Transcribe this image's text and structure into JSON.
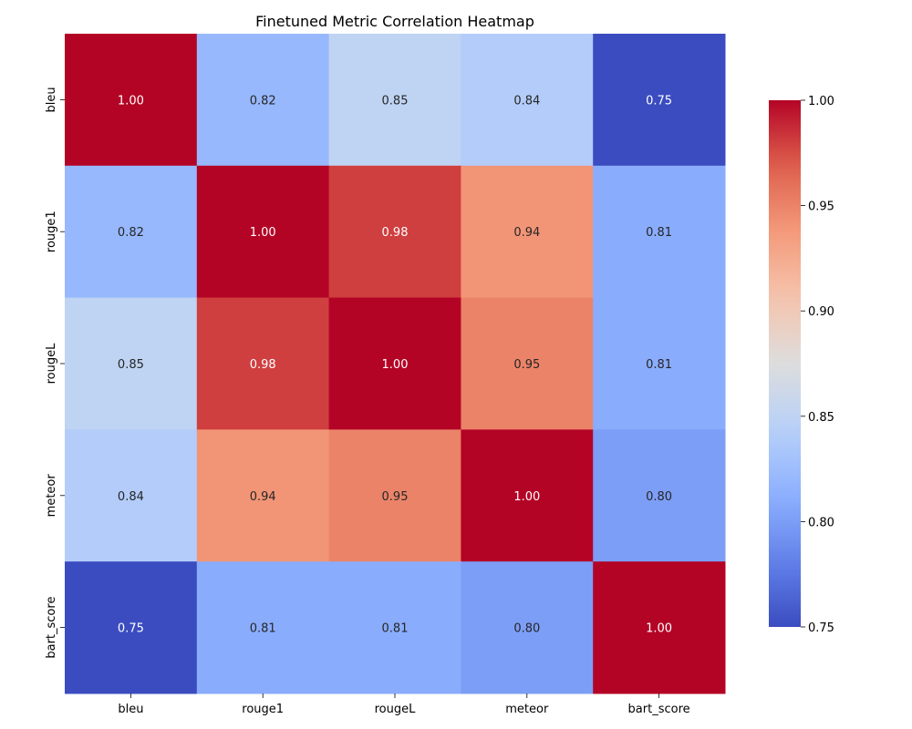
{
  "chart_data": {
    "type": "heatmap",
    "title": "Finetuned Metric Correlation Heatmap",
    "x_labels": [
      "bleu",
      "rouge1",
      "rougeL",
      "meteor",
      "bart_score"
    ],
    "y_labels": [
      "bleu",
      "rouge1",
      "rougeL",
      "meteor",
      "bart_score"
    ],
    "values": [
      [
        1.0,
        0.82,
        0.85,
        0.84,
        0.75
      ],
      [
        0.82,
        1.0,
        0.98,
        0.94,
        0.81
      ],
      [
        0.85,
        0.98,
        1.0,
        0.95,
        0.81
      ],
      [
        0.84,
        0.94,
        0.95,
        1.0,
        0.8
      ],
      [
        0.75,
        0.81,
        0.81,
        0.8,
        1.0
      ]
    ],
    "value_format": "0.00",
    "colormap": "coolwarm",
    "vmin": 0.75,
    "vmax": 1.0,
    "colorbar": {
      "ticks": [
        0.75,
        0.8,
        0.85,
        0.9,
        0.95,
        1.0
      ],
      "tick_labels": [
        "0.75",
        "0.80",
        "0.85",
        "0.90",
        "0.95",
        "1.00"
      ],
      "placement": "right"
    },
    "xlabel": "",
    "ylabel": "",
    "grid": false
  }
}
